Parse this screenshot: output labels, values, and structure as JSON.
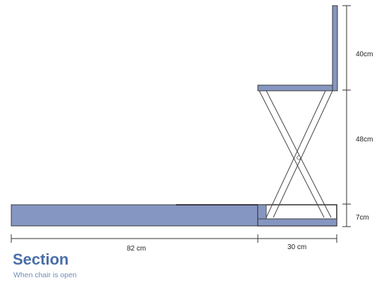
{
  "colors": {
    "panel_fill": "#8696c2",
    "panel_stroke": "#3a3a3a",
    "line": "#333333",
    "caption": "#4a6ea8",
    "caption_sub": "#6d8cbb"
  },
  "dimensions": {
    "backrest_height": "40cm",
    "seat_height": "48cm",
    "base_height": "7cm",
    "bench_length": "82 cm",
    "seat_depth": "30 cm"
  },
  "caption": {
    "title": "Section",
    "subtitle": "When chair is open"
  }
}
